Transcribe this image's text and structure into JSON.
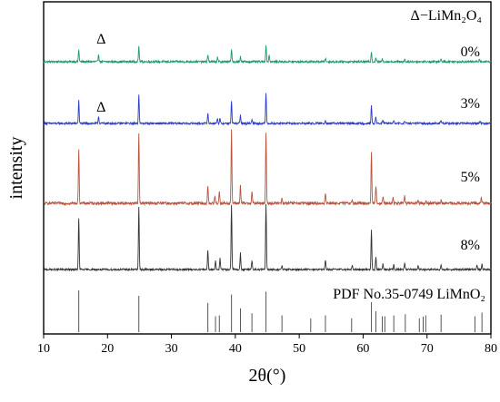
{
  "chart_data": {
    "type": "line",
    "xlabel": "2θ(°)",
    "ylabel": "intensity",
    "xlim": [
      10,
      80
    ],
    "xticks": [
      "10",
      "20",
      "30",
      "40",
      "50",
      "60",
      "70",
      "80"
    ],
    "legend_note": "Δ−LiMn₂O₄",
    "annotations": [
      {
        "text": "Δ",
        "x": 19.0,
        "series": "0%"
      },
      {
        "text": "Δ",
        "x": 19.0,
        "series": "3%"
      }
    ],
    "series": [
      {
        "name": "0%",
        "color": "#1f9a6b",
        "noise": 1.2,
        "peaks": [
          [
            15.5,
            14
          ],
          [
            18.6,
            9
          ],
          [
            24.9,
            18
          ],
          [
            35.7,
            8
          ],
          [
            37.2,
            5
          ],
          [
            39.4,
            14
          ],
          [
            40.8,
            6
          ],
          [
            44.8,
            20
          ],
          [
            45.3,
            8
          ],
          [
            54.1,
            4
          ],
          [
            61.3,
            12
          ],
          [
            62.0,
            5
          ],
          [
            63.0,
            3
          ],
          [
            66.5,
            3
          ],
          [
            72.2,
            3
          ],
          [
            78.2,
            3
          ]
        ]
      },
      {
        "name": "3%",
        "color": "#2b3cc7",
        "noise": 1.1,
        "peaks": [
          [
            15.5,
            25
          ],
          [
            18.6,
            8
          ],
          [
            24.9,
            32
          ],
          [
            35.7,
            12
          ],
          [
            37.2,
            6
          ],
          [
            37.6,
            5
          ],
          [
            39.4,
            24
          ],
          [
            40.8,
            9
          ],
          [
            42.6,
            5
          ],
          [
            44.8,
            34
          ],
          [
            54.1,
            4
          ],
          [
            61.3,
            19
          ],
          [
            62.0,
            7
          ],
          [
            63.1,
            4
          ],
          [
            64.8,
            3
          ],
          [
            66.5,
            3
          ],
          [
            72.2,
            3
          ],
          [
            78.3,
            3
          ]
        ]
      },
      {
        "name": "5%",
        "color": "#b5553f",
        "noise": 1.6,
        "peaks": [
          [
            15.5,
            60
          ],
          [
            24.9,
            78
          ],
          [
            35.7,
            20
          ],
          [
            36.8,
            8
          ],
          [
            37.5,
            14
          ],
          [
            39.4,
            80
          ],
          [
            40.8,
            19
          ],
          [
            42.6,
            14
          ],
          [
            44.8,
            78
          ],
          [
            47.3,
            5
          ],
          [
            54.1,
            12
          ],
          [
            58.3,
            4
          ],
          [
            61.3,
            56
          ],
          [
            62.0,
            20
          ],
          [
            63.1,
            8
          ],
          [
            64.7,
            6
          ],
          [
            66.5,
            8
          ],
          [
            68.6,
            4
          ],
          [
            69.9,
            3
          ],
          [
            72.2,
            4
          ],
          [
            78.5,
            6
          ]
        ]
      },
      {
        "name": "8%",
        "color": "#333333",
        "noise": 1.0,
        "peaks": [
          [
            15.5,
            56
          ],
          [
            24.9,
            68
          ],
          [
            35.7,
            22
          ],
          [
            36.9,
            10
          ],
          [
            37.6,
            12
          ],
          [
            39.4,
            72
          ],
          [
            40.8,
            18
          ],
          [
            42.6,
            10
          ],
          [
            44.8,
            72
          ],
          [
            47.3,
            4
          ],
          [
            54.1,
            11
          ],
          [
            58.3,
            4
          ],
          [
            61.3,
            44
          ],
          [
            62.0,
            14
          ],
          [
            63.1,
            6
          ],
          [
            64.8,
            5
          ],
          [
            66.5,
            7
          ],
          [
            68.6,
            4
          ],
          [
            72.2,
            6
          ],
          [
            77.8,
            5
          ],
          [
            78.6,
            7
          ]
        ]
      }
    ],
    "reference": {
      "label": "PDF No.35-0749 LiMnO₂",
      "color": "#555555",
      "lines": [
        [
          15.5,
          100
        ],
        [
          24.9,
          87
        ],
        [
          35.7,
          70
        ],
        [
          36.9,
          38
        ],
        [
          37.5,
          40
        ],
        [
          39.4,
          90
        ],
        [
          40.8,
          57
        ],
        [
          42.6,
          45
        ],
        [
          44.8,
          97
        ],
        [
          47.3,
          40
        ],
        [
          51.8,
          33
        ],
        [
          54.1,
          40
        ],
        [
          58.2,
          33
        ],
        [
          61.3,
          72
        ],
        [
          62.0,
          50
        ],
        [
          63.0,
          38
        ],
        [
          63.4,
          38
        ],
        [
          64.8,
          40
        ],
        [
          66.6,
          43
        ],
        [
          68.8,
          33
        ],
        [
          69.4,
          37
        ],
        [
          69.8,
          40
        ],
        [
          72.2,
          42
        ],
        [
          77.5,
          38
        ],
        [
          78.6,
          47
        ]
      ]
    }
  }
}
